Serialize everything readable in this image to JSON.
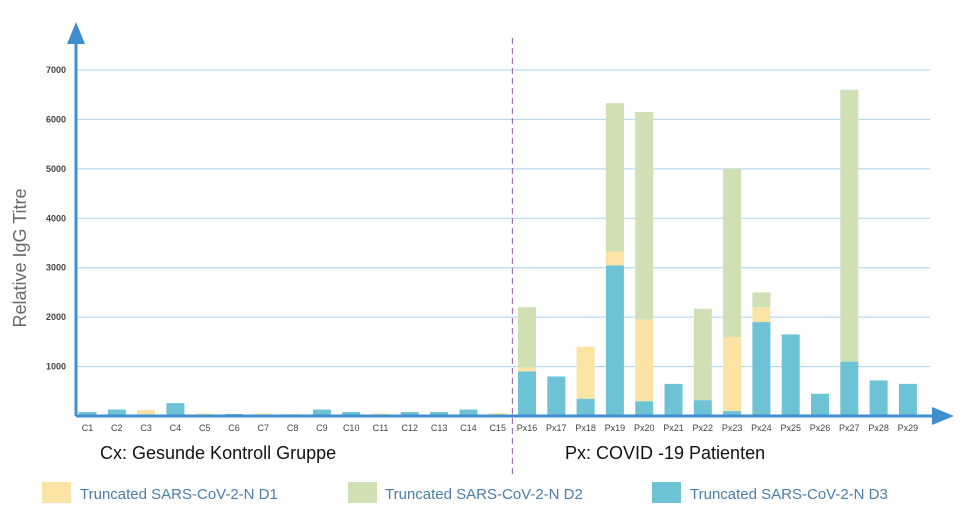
{
  "chart_data": {
    "type": "bar",
    "stacked": true,
    "ylabel": "Relative IgG Titre",
    "ylim": [
      0,
      7000
    ],
    "yticks": [
      1000,
      2000,
      3000,
      4000,
      5000,
      6000,
      7000
    ],
    "grid": true,
    "categories": [
      "C1",
      "C2",
      "C3",
      "C4",
      "C5",
      "C6",
      "C7",
      "C8",
      "C9",
      "C10",
      "C11",
      "C12",
      "C13",
      "C14",
      "C15",
      "Px16",
      "Px17",
      "Px18",
      "Px19",
      "Px20",
      "Px21",
      "Px22",
      "Px23",
      "Px24",
      "Px25",
      "Px26",
      "Px27",
      "Px28",
      "Px29"
    ],
    "series": [
      {
        "name": "Truncated SARS-CoV-2-N D3",
        "color": "#6ec2d6",
        "values": [
          80,
          130,
          0,
          260,
          0,
          40,
          0,
          0,
          130,
          80,
          0,
          80,
          80,
          130,
          0,
          900,
          800,
          350,
          3050,
          300,
          650,
          320,
          100,
          1900,
          1650,
          450,
          1100,
          720,
          650
        ]
      },
      {
        "name": "Truncated SARS-CoV-2-N D1",
        "color": "#fbe3a6",
        "values": [
          0,
          0,
          120,
          0,
          50,
          0,
          50,
          40,
          0,
          0,
          50,
          0,
          0,
          0,
          60,
          80,
          0,
          1050,
          280,
          1650,
          0,
          0,
          1500,
          300,
          0,
          0,
          0,
          0,
          0
        ]
      },
      {
        "name": "Truncated SARS-CoV-2-N D2",
        "color": "#cfe0b5",
        "values": [
          0,
          0,
          0,
          0,
          0,
          0,
          0,
          0,
          0,
          0,
          0,
          0,
          0,
          0,
          0,
          1220,
          0,
          0,
          3000,
          4200,
          0,
          1850,
          3400,
          300,
          0,
          0,
          5500,
          0,
          0
        ]
      }
    ],
    "divider_after": "C15",
    "group_labels": [
      "Cx: Gesunde Kontroll Gruppe",
      "Px: COVID -19 Patienten"
    ],
    "legend": {
      "placement": "bottom",
      "entries": [
        {
          "label": "Truncated SARS-CoV-2-N D1",
          "color": "#fbe3a6"
        },
        {
          "label": "Truncated SARS-CoV-2-N D2",
          "color": "#cfe0b5"
        },
        {
          "label": "Truncated SARS-CoV-2-N D3",
          "color": "#6ec2d6"
        }
      ]
    },
    "axis_color": "#3f8fcf",
    "grid_color": "#a9d2ee",
    "divider_color": "#8a5a9e"
  }
}
